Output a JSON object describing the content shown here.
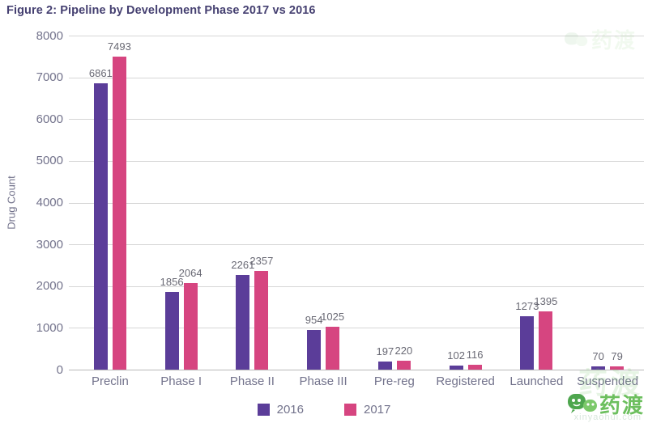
{
  "title": "Figure 2: Pipeline by Development Phase 2017 vs 2016",
  "chart_data": {
    "type": "bar",
    "categories": [
      "Preclin",
      "Phase I",
      "Phase II",
      "Phase III",
      "Pre-reg",
      "Registered",
      "Launched",
      "Suspended"
    ],
    "series": [
      {
        "name": "2016",
        "color": "#5B3D99",
        "values": [
          6861,
          1856,
          2261,
          954,
          197,
          102,
          1273,
          70
        ]
      },
      {
        "name": "2017",
        "color": "#D64580",
        "values": [
          7493,
          2064,
          2357,
          1025,
          220,
          116,
          1395,
          79
        ]
      }
    ],
    "xlabel": "",
    "ylabel": "Drug Count",
    "ylim": [
      0,
      8000
    ],
    "ytick_step": 1000,
    "grid": true,
    "legend_position": "bottom",
    "bar_value_labels": true
  },
  "watermark": {
    "logo_text": "药渡",
    "ghost_text": "药渡",
    "domain_text": "xinyaohui.com",
    "color": "#6cbf5e"
  },
  "colors": {
    "title_text": "#454071",
    "axis_text": "#73738C",
    "value_label_text": "#696974",
    "gridline": "#D6D6D6",
    "axis_line": "#B9B9B9"
  }
}
